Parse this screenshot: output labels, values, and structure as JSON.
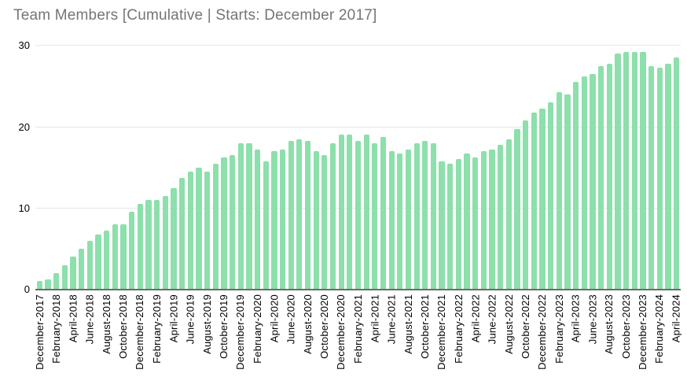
{
  "title": "Team Members [Cumulative | Starts: December 2017]",
  "colors": {
    "bar": "#8ddfab",
    "title_text": "#757575",
    "axis_line": "#6b6b6b",
    "gridline": "#e6e6e6",
    "tick_label": "#000000",
    "background": "#ffffff"
  },
  "chart_data": {
    "type": "bar",
    "title": "Team Members [Cumulative | Starts: December 2017]",
    "xlabel": "",
    "ylabel": "",
    "ylim": [
      0,
      30
    ],
    "yticks": [
      0,
      10,
      20,
      30
    ],
    "grid": true,
    "legend": "none",
    "x_label_every": 2,
    "categories": [
      "December-2017",
      "January-2018",
      "February-2018",
      "March-2018",
      "April-2018",
      "May-2018",
      "June-2018",
      "July-2018",
      "August-2018",
      "September-2018",
      "October-2018",
      "November-2018",
      "December-2018",
      "January-2019",
      "February-2019",
      "March-2019",
      "April-2019",
      "May-2019",
      "June-2019",
      "July-2019",
      "August-2019",
      "September-2019",
      "October-2019",
      "November-2019",
      "December-2019",
      "January-2020",
      "February-2020",
      "March-2020",
      "April-2020",
      "May-2020",
      "June-2020",
      "July-2020",
      "August-2020",
      "September-2020",
      "October-2020",
      "November-2020",
      "December-2020",
      "January-2021",
      "February-2021",
      "March-2021",
      "April-2021",
      "May-2021",
      "June-2021",
      "July-2021",
      "August-2021",
      "September-2021",
      "October-2021",
      "November-2021",
      "December-2021",
      "January-2022",
      "February-2022",
      "March-2022",
      "April-2022",
      "May-2022",
      "June-2022",
      "July-2022",
      "August-2022",
      "September-2022",
      "October-2022",
      "November-2022",
      "December-2022",
      "January-2023",
      "February-2023",
      "March-2023",
      "April-2023",
      "May-2023",
      "June-2023",
      "July-2023",
      "August-2023",
      "September-2023",
      "October-2023",
      "November-2023",
      "December-2023",
      "January-2024",
      "February-2024",
      "March-2024",
      "April-2024"
    ],
    "values": [
      1,
      1.25,
      2,
      3,
      4,
      5,
      6,
      6.75,
      7.25,
      8,
      8,
      9.5,
      10.5,
      11,
      11,
      11.5,
      12.5,
      13.75,
      14.5,
      15,
      14.5,
      15.5,
      16.25,
      16.5,
      18,
      18,
      17.25,
      15.75,
      17,
      17.25,
      18.25,
      18.5,
      18.25,
      17,
      16.5,
      18,
      19,
      19,
      18.25,
      19,
      18,
      18.75,
      17,
      16.75,
      17.25,
      18,
      18.25,
      18,
      15.75,
      15.5,
      16,
      16.75,
      16.25,
      17,
      17.25,
      17.75,
      18.5,
      19.75,
      20.75,
      21.75,
      22.25,
      23,
      24.25,
      24,
      25.5,
      26.25,
      26.5,
      27.5,
      27.75,
      29,
      29.25,
      29.25,
      29.25,
      27.5,
      27.25,
      27.75,
      28.5
    ]
  }
}
